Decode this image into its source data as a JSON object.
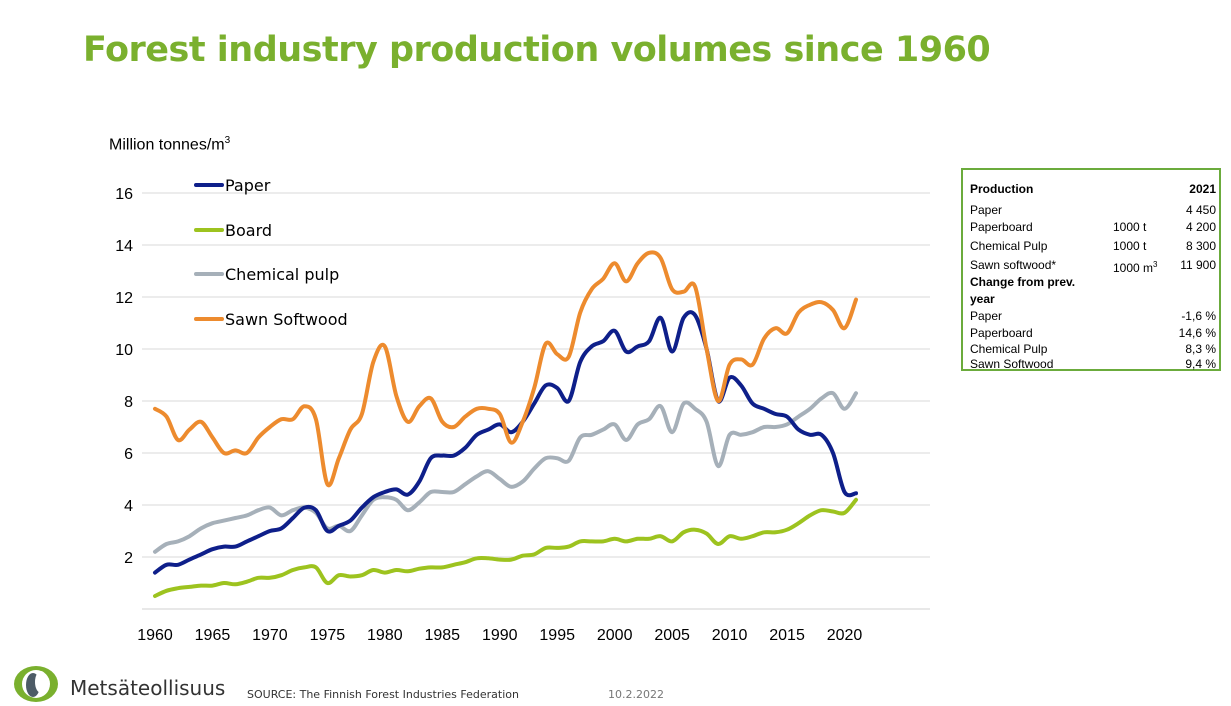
{
  "header": {
    "title": "Forest industry production volumes since 1960"
  },
  "chart_data": {
    "type": "line",
    "ylabel_text": "Million tonnes/m",
    "ylabel_sup": "3",
    "xlim": [
      1960,
      2021
    ],
    "ylim": [
      0,
      16
    ],
    "y_ticks": [
      2,
      4,
      6,
      8,
      10,
      12,
      14,
      16
    ],
    "x_ticks": [
      1960,
      1965,
      1970,
      1975,
      1980,
      1985,
      1990,
      1995,
      2000,
      2005,
      2010,
      2015,
      2020
    ],
    "grid": true,
    "legend_position": "top-left",
    "x": [
      1960,
      1961,
      1962,
      1963,
      1964,
      1965,
      1966,
      1967,
      1968,
      1969,
      1970,
      1971,
      1972,
      1973,
      1974,
      1975,
      1976,
      1977,
      1978,
      1979,
      1980,
      1981,
      1982,
      1983,
      1984,
      1985,
      1986,
      1987,
      1988,
      1989,
      1990,
      1991,
      1992,
      1993,
      1994,
      1995,
      1996,
      1997,
      1998,
      1999,
      2000,
      2001,
      2002,
      2003,
      2004,
      2005,
      2006,
      2007,
      2008,
      2009,
      2010,
      2011,
      2012,
      2013,
      2014,
      2015,
      2016,
      2017,
      2018,
      2019,
      2020,
      2021
    ],
    "series": [
      {
        "name": "Paper",
        "color": "#0e1f8a",
        "values": [
          1.4,
          1.7,
          1.7,
          1.9,
          2.1,
          2.3,
          2.4,
          2.4,
          2.6,
          2.8,
          3.0,
          3.1,
          3.5,
          3.9,
          3.8,
          3.0,
          3.2,
          3.4,
          3.9,
          4.3,
          4.5,
          4.6,
          4.4,
          4.9,
          5.8,
          5.9,
          5.9,
          6.2,
          6.7,
          6.9,
          7.1,
          6.8,
          7.2,
          7.9,
          8.6,
          8.5,
          8.0,
          9.5,
          10.1,
          10.3,
          10.7,
          9.9,
          10.1,
          10.3,
          11.2,
          9.9,
          11.2,
          11.3,
          10.0,
          8.0,
          8.9,
          8.6,
          7.9,
          7.7,
          7.5,
          7.4,
          6.9,
          6.7,
          6.7,
          6.0,
          4.5,
          4.45
        ]
      },
      {
        "name": "Board",
        "color": "#9dc31f",
        "values": [
          0.5,
          0.7,
          0.8,
          0.85,
          0.9,
          0.9,
          1.0,
          0.95,
          1.05,
          1.2,
          1.2,
          1.3,
          1.5,
          1.6,
          1.6,
          1.0,
          1.3,
          1.25,
          1.3,
          1.5,
          1.4,
          1.5,
          1.45,
          1.55,
          1.6,
          1.6,
          1.7,
          1.8,
          1.95,
          1.95,
          1.9,
          1.9,
          2.05,
          2.1,
          2.35,
          2.35,
          2.4,
          2.6,
          2.6,
          2.6,
          2.7,
          2.6,
          2.7,
          2.7,
          2.8,
          2.6,
          2.95,
          3.05,
          2.9,
          2.5,
          2.8,
          2.7,
          2.8,
          2.95,
          2.95,
          3.05,
          3.3,
          3.6,
          3.8,
          3.75,
          3.7,
          4.2
        ]
      },
      {
        "name": "Chemical pulp",
        "color": "#a6b0b9",
        "values": [
          2.2,
          2.5,
          2.6,
          2.8,
          3.1,
          3.3,
          3.4,
          3.5,
          3.6,
          3.8,
          3.9,
          3.6,
          3.8,
          3.9,
          3.7,
          3.1,
          3.2,
          3.0,
          3.6,
          4.2,
          4.3,
          4.2,
          3.8,
          4.1,
          4.5,
          4.5,
          4.5,
          4.8,
          5.1,
          5.3,
          5.0,
          4.7,
          4.9,
          5.4,
          5.8,
          5.8,
          5.7,
          6.6,
          6.7,
          6.9,
          7.1,
          6.5,
          7.1,
          7.3,
          7.8,
          6.8,
          7.9,
          7.7,
          7.2,
          5.5,
          6.7,
          6.7,
          6.8,
          7.0,
          7.0,
          7.1,
          7.4,
          7.7,
          8.1,
          8.3,
          7.7,
          8.3
        ]
      },
      {
        "name": "Sawn Softwood",
        "color": "#ed8b2e",
        "values": [
          7.7,
          7.4,
          6.5,
          6.9,
          7.2,
          6.6,
          6.0,
          6.1,
          6.0,
          6.6,
          7.0,
          7.3,
          7.3,
          7.8,
          7.3,
          4.8,
          5.8,
          6.9,
          7.5,
          9.5,
          10.1,
          8.2,
          7.2,
          7.8,
          8.1,
          7.2,
          7.0,
          7.4,
          7.7,
          7.7,
          7.5,
          6.4,
          7.2,
          8.5,
          10.2,
          9.8,
          9.7,
          11.4,
          12.3,
          12.7,
          13.3,
          12.6,
          13.3,
          13.7,
          13.5,
          12.3,
          12.2,
          12.4,
          10.0,
          8.0,
          9.4,
          9.6,
          9.4,
          10.4,
          10.8,
          10.6,
          11.4,
          11.7,
          11.8,
          11.5,
          10.8,
          11.9
        ]
      }
    ]
  },
  "table": {
    "header": {
      "label": "Production",
      "year": "2021"
    },
    "production_rows": [
      {
        "label": "Paper",
        "unit": "",
        "unit_sup": "",
        "value": "4 450"
      },
      {
        "label": "Paperboard",
        "unit": "1000 t",
        "unit_sup": "",
        "value": "4 200"
      },
      {
        "label": "Chemical Pulp",
        "unit": "1000 t",
        "unit_sup": "",
        "value": "8 300"
      },
      {
        "label": "Sawn softwood*",
        "unit": "1000 m",
        "unit_sup": "3",
        "value": "11 900"
      }
    ],
    "change_heading_line1": "Change from prev.",
    "change_heading_line2": "year",
    "change_rows": [
      {
        "label": "Paper",
        "value": "-1,6 %"
      },
      {
        "label": "Paperboard",
        "value": "14,6 %"
      },
      {
        "label": "Chemical Pulp",
        "value": "8,3 %"
      },
      {
        "label": "Sawn Softwood",
        "value": "9,4 %"
      }
    ]
  },
  "footer": {
    "brand": "Metsäteollisuus",
    "source": "SOURCE: The Finnish Forest Industries Federation",
    "date": "10.2.2022",
    "logo_colors": {
      "outer": "#7ab02e",
      "inner": "#4d5b66"
    }
  }
}
